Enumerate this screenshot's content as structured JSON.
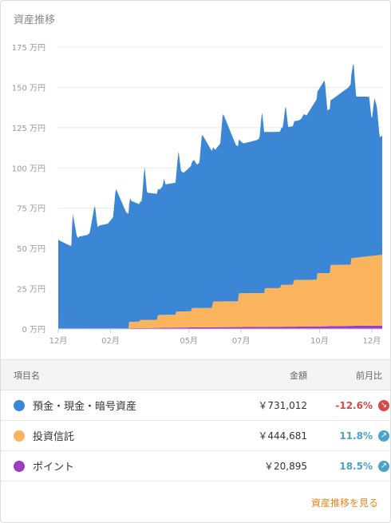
{
  "card": {
    "title": "資産推移",
    "link_label": "資産推移を見る"
  },
  "colors": {
    "deposit": "#3b87d6",
    "fund": "#fbb45e",
    "point": "#9b3fc0",
    "negative": "#d64a45",
    "positive": "#4aa3c9",
    "link": "#e8861e"
  },
  "chart_data": {
    "type": "area",
    "stacked": true,
    "ylim": [
      0,
      175
    ],
    "y_ticks": [
      "0 万円",
      "25 万円",
      "50 万円",
      "75 万円",
      "100 万円",
      "125 万円",
      "150 万円",
      "175 万円"
    ],
    "y_tick_values": [
      0,
      25,
      50,
      75,
      100,
      125,
      150,
      175
    ],
    "x_ticks": [
      "12月",
      "02月",
      "05月",
      "07月",
      "10月",
      "12月"
    ],
    "x_tick_values": [
      0,
      2,
      5,
      7,
      10,
      12
    ],
    "xlim": [
      0,
      12.4
    ],
    "series": [
      {
        "name": "ポイント",
        "key": "point",
        "x": [
          0,
          2.5,
          5.2,
          7,
          9.5,
          11.5,
          12.4
        ],
        "values": [
          0.3,
          0.4,
          1.0,
          1.2,
          1.5,
          2.0,
          2.1
        ]
      },
      {
        "name": "投資信託",
        "key": "fund",
        "x": [
          0,
          2.7,
          2.71,
          3.1,
          3.11,
          3.8,
          3.81,
          4.5,
          4.51,
          5.1,
          5.11,
          5.9,
          5.91,
          6.9,
          6.91,
          7.9,
          7.91,
          8.5,
          8.51,
          9.0,
          9.01,
          9.9,
          9.91,
          10.4,
          10.41,
          11.2,
          11.21,
          12.4
        ],
        "values": [
          0,
          0,
          4,
          4,
          5,
          5,
          8,
          8,
          10,
          10,
          12,
          12,
          16,
          16,
          21,
          21,
          24,
          24,
          26,
          26,
          29,
          29,
          33,
          33,
          38,
          38,
          42,
          44
        ]
      },
      {
        "name": "預金・現金・暗号資産",
        "key": "deposit",
        "x": [
          0,
          0.5,
          0.55,
          0.7,
          0.75,
          0.8,
          1.1,
          1.2,
          1.4,
          1.5,
          1.6,
          1.9,
          2.0,
          2.1,
          2.2,
          2.6,
          2.7,
          2.75,
          2.8,
          3.1,
          3.2,
          3.3,
          3.4,
          3.9,
          4.0,
          4.05,
          4.1,
          4.5,
          4.6,
          4.7,
          4.8,
          5.2,
          5.3,
          5.4,
          5.5,
          6.0,
          6.1,
          6.2,
          6.3,
          6.8,
          6.9,
          7.0,
          7.1,
          7.6,
          7.7,
          7.8,
          7.9,
          8.5,
          8.6,
          8.7,
          8.8,
          9.2,
          9.3,
          9.4,
          9.5,
          10.2,
          10.3,
          10.4,
          10.5,
          11.1,
          11.2,
          11.3,
          11.4,
          11.9,
          12.0,
          12.1,
          12.2,
          12.3,
          12.4
        ],
        "values": [
          55,
          51,
          72,
          58,
          56,
          57,
          58,
          59,
          77,
          63,
          64,
          65,
          67,
          69,
          87,
          72,
          71,
          77,
          75,
          73,
          74,
          96,
          79,
          78,
          80,
          85,
          81,
          82,
          100,
          87,
          86,
          92,
          89,
          90,
          108,
          94,
          96,
          98,
          117,
          97,
          96,
          94,
          93,
          95,
          96,
          113,
          97,
          97,
          98,
          112,
          98,
          99,
          100,
          103,
          102,
          120,
          101,
          102,
          103,
          110,
          112,
          122,
          100,
          99,
          84,
          98,
          92,
          73,
          74
        ]
      }
    ]
  },
  "table": {
    "headers": {
      "name": "項目名",
      "amount": "金額",
      "change": "前月比"
    },
    "rows": [
      {
        "name": "預金・現金・暗号資産",
        "amount": "￥731,012",
        "change": "-12.6%",
        "direction": "down",
        "color": "#3b87d6"
      },
      {
        "name": "投資信託",
        "amount": "￥444,681",
        "change": "11.8%",
        "direction": "up",
        "color": "#fbb45e"
      },
      {
        "name": "ポイント",
        "amount": "￥20,895",
        "change": "18.5%",
        "direction": "up",
        "color": "#9b3fc0"
      }
    ]
  }
}
